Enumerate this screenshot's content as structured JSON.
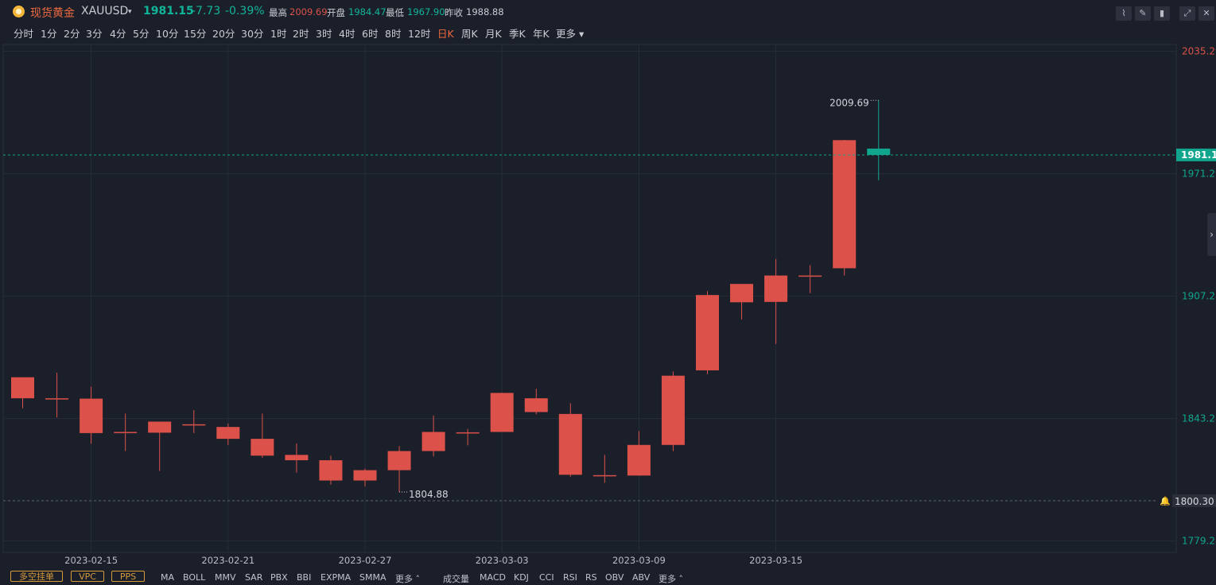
{
  "header": {
    "name": "现货黄金",
    "symbol": "XAUUSD",
    "price": "1981.15",
    "change": "-7.73",
    "change_pct": "-0.39%",
    "high_label": "最高",
    "high_value": "2009.69",
    "open_label": "开盘",
    "open_value": "1984.47",
    "low_label": "最低",
    "low_value": "1967.90",
    "prev_label": "昨收",
    "prev_value": "1988.88"
  },
  "periods": [
    "分时",
    "1分",
    "2分",
    "3分",
    "4分",
    "5分",
    "10分",
    "15分",
    "20分",
    "30分",
    "1时",
    "2时",
    "3时",
    "4时",
    "6时",
    "8时",
    "12时",
    "日K",
    "周K",
    "月K",
    "季K",
    "年K",
    "更多"
  ],
  "active_period": "日K",
  "toolbar_icons": [
    "draw-line-icon",
    "edit-icon",
    "candle-style-icon",
    "expand-icon",
    "close-icon"
  ],
  "indicator_tags": [
    "多空挂单",
    "VPC",
    "PPS"
  ],
  "indicators_main": [
    "MA",
    "BOLL",
    "MMV",
    "SAR",
    "PBX",
    "BBI",
    "EXPMA",
    "SMMA",
    "更多"
  ],
  "indicators_sub": [
    "成交量",
    "MACD",
    "KDJ",
    "CCI",
    "RSI",
    "RS",
    "OBV",
    "ABV",
    "更多"
  ],
  "colors": {
    "up": "#dc5149",
    "down": "#10a58c",
    "bg": "#1b1f2a",
    "grid": "#262d38",
    "active": "#ef6a3f"
  },
  "chart_data": {
    "type": "candlestick",
    "x_tick_labels": [
      "2023-02-15",
      "2023-02-21",
      "2023-02-27",
      "2023-03-03",
      "2023-03-09",
      "2023-03-15"
    ],
    "y_tick_labels": [
      "2035.29",
      "1971.29",
      "1907.28",
      "1843.28",
      "1779.28"
    ],
    "current_price_label": "1981.15",
    "alert_price_label": "1800.30",
    "max_label": "2009.69",
    "min_label": "1804.88",
    "candles": [
      {
        "date": "2023-02-13",
        "open": 1853.9,
        "high": 1862.3,
        "low": 1848.7,
        "close": 1864.9
      },
      {
        "date": "2023-02-14",
        "open": 1853.9,
        "high": 1867.3,
        "low": 1843.9,
        "close": 1853.9
      },
      {
        "date": "2023-02-15",
        "open": 1835.7,
        "high": 1859.9,
        "low": 1830.1,
        "close": 1853.7
      },
      {
        "date": "2023-02-16",
        "open": 1836.3,
        "high": 1845.9,
        "low": 1826.3,
        "close": 1836.3
      },
      {
        "date": "2023-02-17",
        "open": 1835.9,
        "high": 1840.3,
        "low": 1815.9,
        "close": 1841.7
      },
      {
        "date": "2023-02-20",
        "open": 1840.3,
        "high": 1847.7,
        "low": 1835.7,
        "close": 1840.3
      },
      {
        "date": "2023-02-21",
        "open": 1832.7,
        "high": 1840.7,
        "low": 1829.5,
        "close": 1838.9
      },
      {
        "date": "2023-02-22",
        "open": 1823.9,
        "high": 1845.9,
        "low": 1822.7,
        "close": 1832.7
      },
      {
        "date": "2023-02-23",
        "open": 1821.5,
        "high": 1830.3,
        "low": 1815.1,
        "close": 1824.3
      },
      {
        "date": "2023-02-24",
        "open": 1810.9,
        "high": 1823.9,
        "low": 1808.7,
        "close": 1821.5
      },
      {
        "date": "2023-02-27",
        "open": 1810.9,
        "high": 1817.1,
        "low": 1807.9,
        "close": 1816.3
      },
      {
        "date": "2023-02-28",
        "open": 1816.3,
        "high": 1828.9,
        "low": 1804.88,
        "close": 1826.3
      },
      {
        "date": "2023-03-01",
        "open": 1826.3,
        "high": 1844.9,
        "low": 1823.5,
        "close": 1836.3
      },
      {
        "date": "2023-03-02",
        "open": 1836.1,
        "high": 1837.9,
        "low": 1829.3,
        "close": 1836.1
      },
      {
        "date": "2023-03-03",
        "open": 1836.3,
        "high": 1856.7,
        "low": 1836.3,
        "close": 1856.7
      },
      {
        "date": "2023-03-06",
        "open": 1846.7,
        "high": 1858.9,
        "low": 1845.5,
        "close": 1853.9
      },
      {
        "date": "2023-03-07",
        "open": 1813.9,
        "high": 1851.3,
        "low": 1812.9,
        "close": 1845.7
      },
      {
        "date": "2023-03-08",
        "open": 1813.3,
        "high": 1824.3,
        "low": 1809.7,
        "close": 1813.7
      },
      {
        "date": "2023-03-09",
        "open": 1813.5,
        "high": 1836.7,
        "low": 1813.5,
        "close": 1829.5
      },
      {
        "date": "2023-03-10",
        "open": 1829.5,
        "high": 1867.9,
        "low": 1826.3,
        "close": 1865.7
      },
      {
        "date": "2023-03-13",
        "open": 1868.5,
        "high": 1909.9,
        "low": 1866.5,
        "close": 1907.9
      },
      {
        "date": "2023-03-14",
        "open": 1904.1,
        "high": 1911.3,
        "low": 1895.1,
        "close": 1913.7
      },
      {
        "date": "2023-03-15",
        "open": 1904.3,
        "high": 1926.7,
        "low": 1882.3,
        "close": 1918.1
      },
      {
        "date": "2023-03-16",
        "open": 1917.9,
        "high": 1923.5,
        "low": 1908.9,
        "close": 1918.1
      },
      {
        "date": "2023-03-17",
        "open": 1921.9,
        "high": 1989.1,
        "low": 1918.1,
        "close": 1988.88
      },
      {
        "date": "2023-03-20",
        "open": 1984.47,
        "high": 2009.69,
        "low": 1967.9,
        "close": 1981.15
      }
    ],
    "ylim": [
      1773.3,
      2038.9
    ],
    "grid": true
  }
}
